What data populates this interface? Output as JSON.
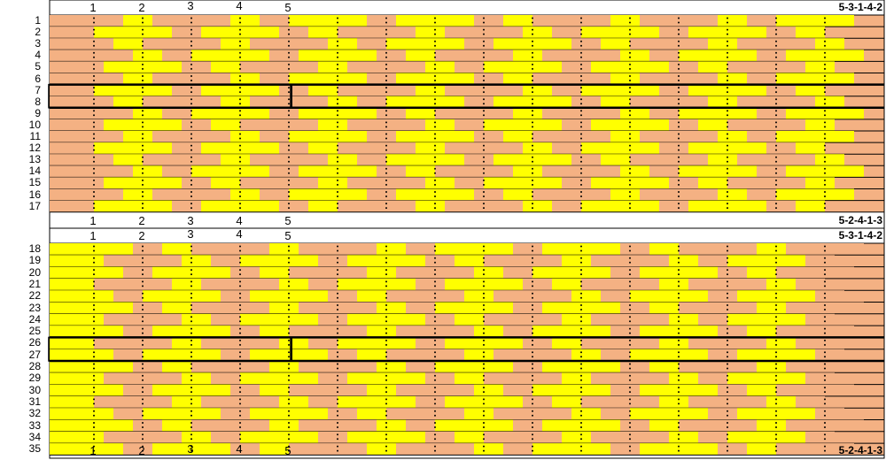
{
  "sections": [
    {
      "name": "upper",
      "top_sequence": "5-3-1-4-2",
      "bottom_sequence": "5-2-4-1-3",
      "column_numbers": [
        "1",
        "2",
        "3",
        "4",
        "5"
      ],
      "row_labels": [
        "1",
        "2",
        "3",
        "4",
        "5",
        "6",
        "7",
        "8",
        "9",
        "10",
        "11",
        "12",
        "13",
        "14",
        "15",
        "16",
        "17"
      ],
      "bold_rows": [
        "7",
        "8"
      ]
    },
    {
      "name": "lower",
      "top_sequence": "5-3-1-4-2",
      "bottom_sequence": "5-2-4-1-3",
      "column_numbers": [
        "1",
        "2",
        "3",
        "4",
        "5"
      ],
      "row_labels": [
        "18",
        "19",
        "20",
        "21",
        "22",
        "23",
        "24",
        "25",
        "26",
        "27",
        "28",
        "29",
        "30",
        "31",
        "32",
        "33",
        "34",
        "35"
      ],
      "bold_rows": [
        "26",
        "27"
      ]
    }
  ],
  "colors": {
    "salmon": "#F4B183",
    "yellow": "#FFFF00",
    "border": "#000000"
  }
}
